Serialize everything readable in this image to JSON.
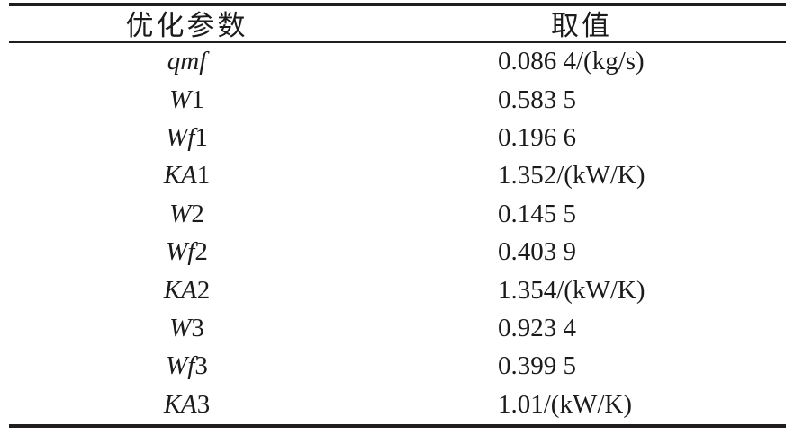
{
  "table": {
    "headers": [
      {
        "label": "优化参数"
      },
      {
        "label": "取值"
      }
    ],
    "rows": [
      {
        "param_italic": "qmf",
        "param_suffix": "",
        "value": "0.086 4/(kg/s)"
      },
      {
        "param_italic": "W",
        "param_suffix": "1",
        "value": "0.583 5"
      },
      {
        "param_italic": "Wf",
        "param_suffix": "1",
        "value": "0.196 6"
      },
      {
        "param_italic": "KA",
        "param_suffix": "1",
        "value": "1.352/(kW/K)"
      },
      {
        "param_italic": "W",
        "param_suffix": "2",
        "value": "0.145 5"
      },
      {
        "param_italic": "Wf",
        "param_suffix": "2",
        "value": "0.403 9"
      },
      {
        "param_italic": "KA",
        "param_suffix": "2",
        "value": "1.354/(kW/K)"
      },
      {
        "param_italic": "W",
        "param_suffix": "3",
        "value": "0.923 4"
      },
      {
        "param_italic": "Wf",
        "param_suffix": "3",
        "value": "0.399 5"
      },
      {
        "param_italic": "KA",
        "param_suffix": "3",
        "value": "1.01/(kW/K)"
      }
    ]
  },
  "colors": {
    "text": "#1b1b1b",
    "rule": "#201d1e",
    "background": "#ffffff"
  }
}
